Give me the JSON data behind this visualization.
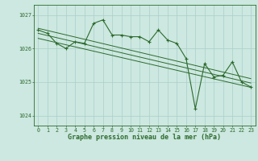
{
  "main_line_x": [
    0,
    1,
    2,
    3,
    4,
    5,
    6,
    7,
    8,
    9,
    10,
    11,
    12,
    13,
    14,
    15,
    16,
    17,
    18,
    19,
    20,
    21,
    22,
    23
  ],
  "main_line_y": [
    1026.55,
    1026.45,
    1026.15,
    1026.0,
    1026.2,
    1026.15,
    1026.75,
    1026.85,
    1026.4,
    1026.4,
    1026.35,
    1026.35,
    1026.2,
    1026.55,
    1026.25,
    1026.15,
    1025.7,
    1024.2,
    1025.55,
    1025.15,
    1025.2,
    1025.6,
    1025.0,
    1024.85
  ],
  "trend1_x": [
    0,
    23
  ],
  "trend1_y": [
    1026.6,
    1025.1
  ],
  "trend2_x": [
    0,
    23
  ],
  "trend2_y": [
    1026.45,
    1024.97
  ],
  "trend3_x": [
    0,
    23
  ],
  "trend3_y": [
    1026.3,
    1024.84
  ],
  "line_color": "#2d6a2d",
  "bg_color": "#cce8e0",
  "plot_bg": "#cce8e0",
  "grid_color": "#aacfc8",
  "xlabel": "Graphe pression niveau de la mer (hPa)",
  "ylim": [
    1023.7,
    1027.3
  ],
  "xlim": [
    -0.5,
    23.5
  ],
  "yticks": [
    1024,
    1025,
    1026,
    1027
  ],
  "xticks": [
    0,
    1,
    2,
    3,
    4,
    5,
    6,
    7,
    8,
    9,
    10,
    11,
    12,
    13,
    14,
    15,
    16,
    17,
    18,
    19,
    20,
    21,
    22,
    23
  ],
  "tick_fontsize": 4.8,
  "xlabel_fontsize": 6.0
}
